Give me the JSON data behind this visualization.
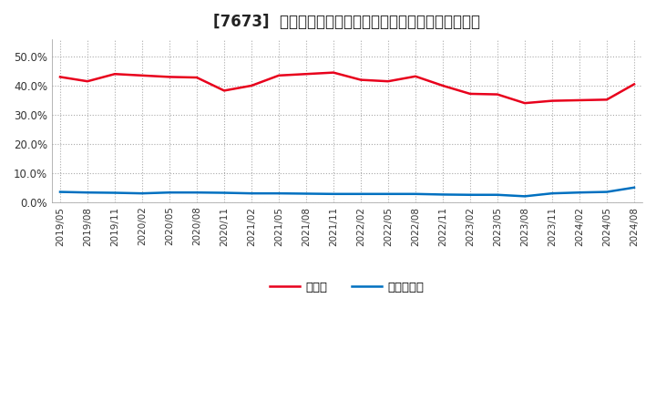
{
  "title": "[7673]  現預金、有利子負債の総資産に対する比率の推移",
  "x_labels": [
    "2019/05",
    "2019/08",
    "2019/11",
    "2020/02",
    "2020/05",
    "2020/08",
    "2020/11",
    "2021/02",
    "2021/05",
    "2021/08",
    "2021/11",
    "2022/02",
    "2022/05",
    "2022/08",
    "2022/11",
    "2023/02",
    "2023/05",
    "2023/08",
    "2023/11",
    "2024/02",
    "2024/05",
    "2024/08"
  ],
  "genkin": [
    0.43,
    0.415,
    0.44,
    0.435,
    0.43,
    0.428,
    0.383,
    0.4,
    0.435,
    0.44,
    0.445,
    0.42,
    0.415,
    0.432,
    0.4,
    0.372,
    0.37,
    0.34,
    0.348,
    0.35,
    0.352,
    0.405
  ],
  "yurishifuku": [
    0.035,
    0.033,
    0.032,
    0.03,
    0.033,
    0.033,
    0.032,
    0.03,
    0.03,
    0.029,
    0.028,
    0.028,
    0.028,
    0.028,
    0.026,
    0.025,
    0.025,
    0.02,
    0.03,
    0.033,
    0.035,
    0.05
  ],
  "genkin_color": "#e8001c",
  "yurishifuku_color": "#0070c0",
  "background_color": "#ffffff",
  "grid_color": "#aaaaaa",
  "ylim": [
    0.0,
    0.56
  ],
  "yticks": [
    0.0,
    0.1,
    0.2,
    0.3,
    0.4,
    0.5
  ],
  "legend_genkin": "現預金",
  "legend_yurishifuku": "有利子負債",
  "title_fontsize": 12,
  "linewidth": 1.8
}
